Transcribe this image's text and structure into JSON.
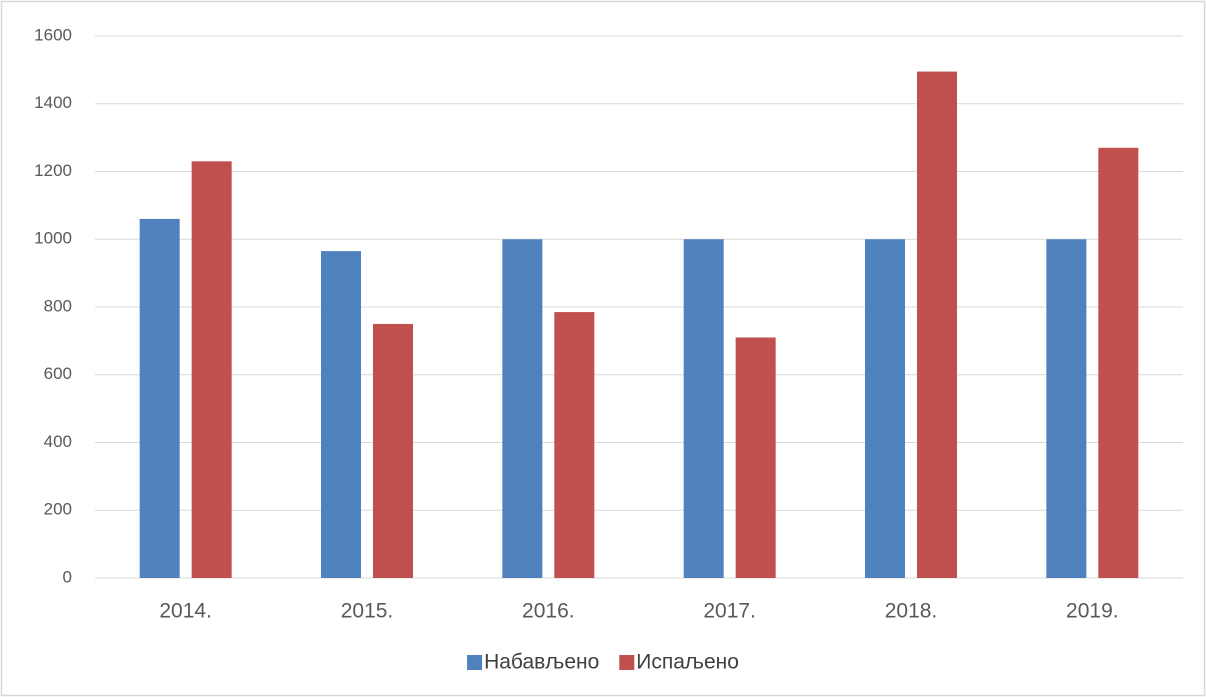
{
  "chart_data": {
    "type": "bar",
    "categories": [
      "2014.",
      "2015.",
      "2016.",
      "2017.",
      "2018.",
      "2019."
    ],
    "series": [
      {
        "name": "Набављено",
        "color": "#4f81bd",
        "values": [
          1060,
          965,
          1000,
          1000,
          1000,
          1000
        ]
      },
      {
        "name": "Испаљено",
        "color": "#c0504d",
        "values": [
          1230,
          750,
          785,
          710,
          1495,
          1270
        ]
      }
    ],
    "ylim": [
      0,
      1600
    ],
    "yticks": [
      0,
      200,
      400,
      600,
      800,
      1000,
      1200,
      1400,
      1600
    ],
    "grid": true,
    "legend": "bottom"
  }
}
